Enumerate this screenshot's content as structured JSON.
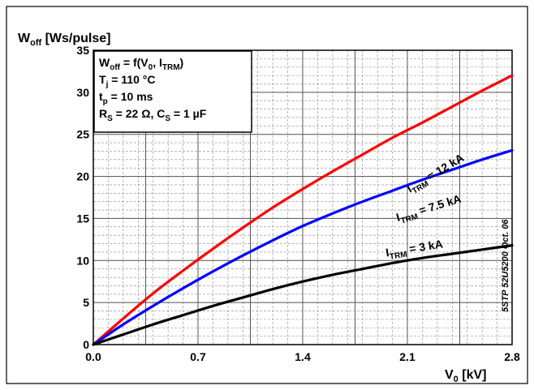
{
  "chart_data": {
    "type": "line",
    "ylabel": {
      "main": "W",
      "sub": "off",
      "rest": " [Ws/pulse]"
    },
    "xlabel": {
      "main": "V",
      "sub": "0",
      "rest": " [kV]"
    },
    "xlim": [
      0,
      2.8
    ],
    "ylim": [
      0,
      35
    ],
    "x_ticks": [
      "0.0",
      "0.7",
      "1.4",
      "2.1",
      "2.8"
    ],
    "y_ticks": [
      "0",
      "5",
      "10",
      "15",
      "20",
      "25",
      "30",
      "35"
    ],
    "grid": true,
    "watermark": "5STP 52U5200 Oct. 06",
    "info_box": {
      "line1": {
        "a": "W",
        "a_sub": "off",
        "b": " = f(V",
        "b_sub": "0",
        "c": ", I",
        "c_sub": "TRM",
        "d": ")"
      },
      "line2": {
        "a": "T",
        "a_sub": "j",
        "b": " = 110 °C"
      },
      "line3": {
        "a": "t",
        "a_sub": "p",
        "b": " = 10 ms"
      },
      "line4": {
        "a": "R",
        "a_sub": "S",
        "b": " = 22 Ω, C",
        "b_sub": "S",
        "c": " = 1 µF"
      }
    },
    "series": [
      {
        "label_main": "I",
        "label_sub": "TRM",
        "label_rest": " = 12 kA",
        "color": "#ff0000",
        "x": [
          0,
          0.2,
          0.4,
          0.6,
          0.8,
          1.0,
          1.2,
          1.4,
          1.6,
          1.8,
          2.0,
          2.2,
          2.4,
          2.6,
          2.8
        ],
        "y": [
          0,
          3.1,
          6.1,
          8.8,
          11.4,
          13.9,
          16.3,
          18.5,
          20.6,
          22.6,
          24.6,
          26.4,
          28.3,
          30.2,
          32.0
        ],
        "label_at": [
          2.3,
          20.0
        ],
        "label_angle": -31
      },
      {
        "label_main": "I",
        "label_sub": "TRM",
        "label_rest": " = 7.5 kA",
        "color": "#0000ff",
        "x": [
          0,
          0.2,
          0.4,
          0.6,
          0.8,
          1.0,
          1.2,
          1.4,
          1.6,
          1.8,
          2.0,
          2.2,
          2.4,
          2.6,
          2.8
        ],
        "y": [
          0,
          2.4,
          4.6,
          6.7,
          8.7,
          10.6,
          12.4,
          14.1,
          15.6,
          17.0,
          18.3,
          19.6,
          20.8,
          22.0,
          23.1
        ],
        "label_at": [
          2.25,
          15.8
        ],
        "label_angle": -17
      },
      {
        "label_main": "I",
        "label_sub": "TRM",
        "label_rest": " = 3 kA",
        "color": "#000000",
        "x": [
          0,
          0.2,
          0.4,
          0.6,
          0.8,
          1.0,
          1.2,
          1.4,
          1.6,
          1.8,
          2.0,
          2.2,
          2.4,
          2.6,
          2.8
        ],
        "y": [
          0,
          1.2,
          2.4,
          3.5,
          4.6,
          5.6,
          6.6,
          7.5,
          8.3,
          9.0,
          9.7,
          10.3,
          10.8,
          11.3,
          11.8
        ],
        "label_at": [
          2.15,
          11.0
        ],
        "label_angle": -9
      }
    ]
  }
}
